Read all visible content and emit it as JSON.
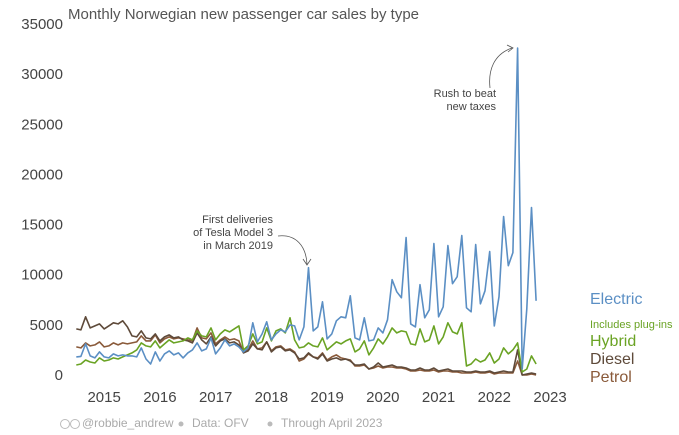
{
  "chart_data": {
    "type": "line",
    "title": "Monthly Norwegian new passenger car sales by type",
    "x": [
      "2015-01",
      "2015-02",
      "2015-03",
      "2015-04",
      "2015-05",
      "2015-06",
      "2015-07",
      "2015-08",
      "2015-09",
      "2015-10",
      "2015-11",
      "2015-12",
      "2016-01",
      "2016-02",
      "2016-03",
      "2016-04",
      "2016-05",
      "2016-06",
      "2016-07",
      "2016-08",
      "2016-09",
      "2016-10",
      "2016-11",
      "2016-12",
      "2017-01",
      "2017-02",
      "2017-03",
      "2017-04",
      "2017-05",
      "2017-06",
      "2017-07",
      "2017-08",
      "2017-09",
      "2017-10",
      "2017-11",
      "2017-12",
      "2018-01",
      "2018-02",
      "2018-03",
      "2018-04",
      "2018-05",
      "2018-06",
      "2018-07",
      "2018-08",
      "2018-09",
      "2018-10",
      "2018-11",
      "2018-12",
      "2019-01",
      "2019-02",
      "2019-03",
      "2019-04",
      "2019-05",
      "2019-06",
      "2019-07",
      "2019-08",
      "2019-09",
      "2019-10",
      "2019-11",
      "2019-12",
      "2020-01",
      "2020-02",
      "2020-03",
      "2020-04",
      "2020-05",
      "2020-06",
      "2020-07",
      "2020-08",
      "2020-09",
      "2020-10",
      "2020-11",
      "2020-12",
      "2021-01",
      "2021-02",
      "2021-03",
      "2021-04",
      "2021-05",
      "2021-06",
      "2021-07",
      "2021-08",
      "2021-09",
      "2021-10",
      "2021-11",
      "2021-12",
      "2022-01",
      "2022-02",
      "2022-03",
      "2022-04",
      "2022-05",
      "2022-06",
      "2022-07",
      "2022-08",
      "2022-09",
      "2022-10",
      "2022-11",
      "2022-12",
      "2023-01",
      "2023-02",
      "2023-03",
      "2023-04"
    ],
    "series": [
      {
        "name": "Electric",
        "color": "#5b8fc4",
        "values": [
          1900,
          1950,
          3200,
          2000,
          1800,
          2400,
          1900,
          1800,
          2200,
          2000,
          2100,
          2000,
          2000,
          1900,
          2800,
          1700,
          1200,
          2400,
          1500,
          2200,
          2500,
          2100,
          2300,
          1800,
          2300,
          2600,
          3300,
          2500,
          2700,
          3800,
          2200,
          2800,
          3600,
          3000,
          3200,
          2900,
          2400,
          2800,
          5300,
          3400,
          4200,
          5400,
          3600,
          4200,
          4600,
          4400,
          5100,
          5000,
          3600,
          4900,
          10800,
          4500,
          4900,
          7400,
          3700,
          4200,
          5500,
          5900,
          5800,
          8000,
          3800,
          3600,
          5800,
          3500,
          3600,
          4800,
          4300,
          5600,
          9600,
          8400,
          7800,
          13800,
          5200,
          4900,
          9100,
          5800,
          6600,
          13200,
          5900,
          6900,
          13000,
          9200,
          9900,
          14000,
          6800,
          6400,
          13100,
          7200,
          8500,
          12400,
          5000,
          7900,
          15900,
          11000,
          12300,
          32700,
          700,
          6700,
          16800,
          7500
        ]
      },
      {
        "name": "Hybrid",
        "note": "Includes plug-ins",
        "color": "#6aa324",
        "values": [
          1100,
          1200,
          1600,
          1400,
          1300,
          1800,
          1500,
          1600,
          1800,
          1700,
          1900,
          2100,
          2300,
          2600,
          3300,
          3000,
          2900,
          3500,
          2800,
          3200,
          3600,
          3300,
          3400,
          3500,
          3800,
          3600,
          4500,
          4000,
          3900,
          4800,
          3600,
          4200,
          4600,
          4400,
          4700,
          5000,
          2600,
          3000,
          4200,
          3200,
          3400,
          4800,
          3500,
          4500,
          4700,
          4300,
          5800,
          3600,
          2800,
          2900,
          3300,
          3000,
          2900,
          3800,
          2600,
          3000,
          3400,
          3200,
          3500,
          3700,
          2400,
          2700,
          3500,
          2100,
          2800,
          3700,
          3200,
          3900,
          4800,
          4300,
          4500,
          4400,
          3200,
          3100,
          4700,
          3400,
          3600,
          5000,
          3200,
          3900,
          5300,
          4400,
          4200,
          5300,
          1000,
          1200,
          1700,
          1400,
          1600,
          2300,
          1300,
          1700,
          2800,
          2200,
          2600,
          3300,
          400,
          700,
          2000,
          1200
        ]
      },
      {
        "name": "Diesel",
        "color": "#5e4a3a",
        "values": [
          4700,
          4600,
          5900,
          4800,
          5000,
          5200,
          4700,
          5000,
          5300,
          5200,
          5500,
          4900,
          4000,
          3900,
          4500,
          3800,
          3700,
          4200,
          3500,
          3900,
          4100,
          3800,
          3900,
          3600,
          3500,
          3300,
          4300,
          3600,
          3200,
          3900,
          3000,
          3500,
          3700,
          3300,
          3400,
          3100,
          2300,
          2500,
          3200,
          2700,
          2600,
          3400,
          2400,
          2800,
          2900,
          2500,
          2600,
          2300,
          1700,
          1800,
          2300,
          1900,
          1700,
          2200,
          1500,
          1700,
          1800,
          1600,
          1700,
          1500,
          1100,
          1100,
          1200,
          700,
          900,
          1300,
          900,
          1000,
          1100,
          900,
          900,
          800,
          600,
          600,
          800,
          600,
          600,
          800,
          500,
          600,
          700,
          500,
          500,
          500,
          400,
          400,
          500,
          400,
          400,
          500,
          300,
          400,
          500,
          400,
          400,
          2600,
          100,
          200,
          300,
          200
        ]
      },
      {
        "name": "Petrol",
        "color": "#8a5a3a",
        "values": [
          2900,
          2800,
          3300,
          3000,
          3100,
          3400,
          2900,
          3000,
          3300,
          3100,
          3300,
          3200,
          3300,
          3400,
          4000,
          3500,
          3500,
          4100,
          3300,
          3700,
          3900,
          3700,
          3800,
          3700,
          3600,
          3500,
          4800,
          3800,
          3700,
          4300,
          3200,
          3600,
          3900,
          3600,
          3700,
          3500,
          2400,
          2600,
          3500,
          2700,
          2800,
          3400,
          2500,
          2900,
          3000,
          2600,
          2700,
          2400,
          1500,
          1700,
          2200,
          1900,
          1800,
          2300,
          1600,
          1900,
          2100,
          1800,
          1700,
          1600,
          1000,
          1000,
          1100,
          700,
          800,
          1000,
          800,
          900,
          900,
          800,
          800,
          700,
          500,
          500,
          600,
          500,
          500,
          600,
          400,
          500,
          500,
          400,
          400,
          300,
          300,
          300,
          400,
          300,
          300,
          400,
          200,
          300,
          300,
          300,
          300,
          1500,
          100,
          100,
          200,
          100
        ]
      }
    ],
    "xlim": [
      "2014-11",
      "2023-10"
    ],
    "xticks": [
      {
        "value": "2015-07",
        "label": "2015"
      },
      {
        "value": "2016-07",
        "label": "2016"
      },
      {
        "value": "2017-07",
        "label": "2017"
      },
      {
        "value": "2018-07",
        "label": "2018"
      },
      {
        "value": "2019-07",
        "label": "2019"
      },
      {
        "value": "2020-07",
        "label": "2020"
      },
      {
        "value": "2021-07",
        "label": "2021"
      },
      {
        "value": "2022-07",
        "label": "2022"
      },
      {
        "value": "2023-07",
        "label": "2023"
      }
    ],
    "ylim": [
      0,
      35000
    ],
    "yticks": [
      0,
      5000,
      10000,
      15000,
      20000,
      25000,
      30000,
      35000
    ],
    "grid": false,
    "annotations": [
      {
        "lines": [
          "Rush to beat",
          "new taxes"
        ],
        "x": "2022-12",
        "y": 32700
      },
      {
        "lines": [
          "First deliveries",
          "of Tesla Model 3",
          "in March 2019"
        ],
        "x": "2019-03",
        "y": 10800
      }
    ],
    "footer": [
      "@robbie_andrew",
      "Data: OFV",
      "Through April 2023"
    ]
  }
}
